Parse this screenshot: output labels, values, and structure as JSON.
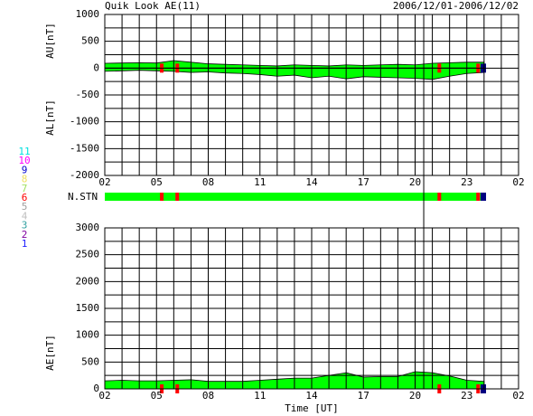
{
  "chart_data": [
    {
      "type": "area",
      "title": "Quik Look AE(11)",
      "subtitle": "2006/12/01-2006/12/02",
      "ylabels": [
        "AU[nT]",
        "AL[nT]"
      ],
      "x": [
        0,
        1,
        2,
        3,
        4,
        5,
        6,
        7,
        8,
        9,
        10,
        11,
        12,
        13,
        14,
        15,
        16,
        17,
        18,
        19,
        20,
        21,
        22
      ],
      "series": [
        {
          "color": "#00ff00",
          "values": [
            90,
            95,
            100,
            95,
            140,
            110,
            80,
            70,
            60,
            50,
            40,
            60,
            50,
            40,
            60,
            50,
            60,
            70,
            60,
            90,
            100,
            110,
            110
          ]
        },
        {
          "color": "#00ff00",
          "values": [
            -60,
            -50,
            -40,
            -50,
            -60,
            -80,
            -70,
            -90,
            -100,
            -120,
            -150,
            -130,
            -180,
            -150,
            -200,
            -160,
            -170,
            -180,
            -190,
            -210,
            -150,
            -100,
            -80
          ]
        }
      ],
      "xlim": [
        0,
        24
      ],
      "xticks": [
        {
          "value": 0,
          "label": "02"
        },
        {
          "value": 3,
          "label": "05"
        },
        {
          "value": 6,
          "label": "08"
        },
        {
          "value": 9,
          "label": "11"
        },
        {
          "value": 12,
          "label": "14"
        },
        {
          "value": 15,
          "label": "17"
        },
        {
          "value": 18,
          "label": "20"
        },
        {
          "value": 21,
          "label": "23"
        },
        {
          "value": 24,
          "label": "02"
        }
      ],
      "xgrid": [
        0,
        1,
        2,
        3,
        4,
        5,
        6,
        7,
        8,
        9,
        10,
        11,
        12,
        13,
        14,
        15,
        16,
        17,
        18,
        19,
        20,
        21,
        22,
        23,
        24
      ],
      "ylim": [
        -2000,
        1000
      ],
      "yticks": [
        -2000,
        -1500,
        -1000,
        -500,
        0,
        500,
        1000
      ],
      "ygrid": [
        -2000,
        -1750,
        -1500,
        -1250,
        -1000,
        -750,
        -500,
        -250,
        0,
        250,
        500,
        750,
        1000
      ],
      "cursor": 18.5
    },
    {
      "type": "area",
      "ylabels": [
        "AE[nT]"
      ],
      "xlabel": "Time [UT]",
      "x": [
        0,
        1,
        2,
        3,
        4,
        5,
        6,
        7,
        8,
        9,
        10,
        11,
        12,
        13,
        14,
        15,
        16,
        17,
        18,
        19,
        20,
        21,
        22
      ],
      "series": [
        {
          "color": "#00ff00",
          "values": [
            150,
            160,
            150,
            150,
            160,
            170,
            140,
            140,
            140,
            160,
            180,
            200,
            200,
            250,
            300,
            220,
            230,
            230,
            320,
            300,
            240,
            160,
            140
          ]
        }
      ],
      "xlim": [
        0,
        24
      ],
      "xticks": [
        {
          "value": 0,
          "label": "02"
        },
        {
          "value": 3,
          "label": "05"
        },
        {
          "value": 6,
          "label": "08"
        },
        {
          "value": 9,
          "label": "11"
        },
        {
          "value": 12,
          "label": "14"
        },
        {
          "value": 15,
          "label": "17"
        },
        {
          "value": 18,
          "label": "20"
        },
        {
          "value": 21,
          "label": "23"
        },
        {
          "value": 24,
          "label": "02"
        }
      ],
      "xgrid": [
        0,
        1,
        2,
        3,
        4,
        5,
        6,
        7,
        8,
        9,
        10,
        11,
        12,
        13,
        14,
        15,
        16,
        17,
        18,
        19,
        20,
        21,
        22,
        23,
        24
      ],
      "ylim": [
        0,
        3000
      ],
      "yticks": [
        0,
        500,
        1000,
        1500,
        2000,
        2500,
        3000
      ],
      "ygrid": [
        0,
        250,
        500,
        750,
        1000,
        1250,
        1500,
        1750,
        2000,
        2250,
        2500,
        2750,
        3000
      ]
    }
  ],
  "station_bar": {
    "label": "N.STN",
    "color": "#00ff00",
    "markers": [
      {
        "x": 3.2,
        "color": "#ff0000"
      },
      {
        "x": 4.1,
        "color": "#ff0000"
      },
      {
        "x": 19.3,
        "color": "#ff0000"
      },
      {
        "x": 21.55,
        "color": "#ff0000"
      },
      {
        "x": 21.8,
        "color": "#000080"
      }
    ]
  },
  "station_legend": [
    {
      "label": "11",
      "color": "#00e0e0"
    },
    {
      "label": "10",
      "color": "#ff00ff"
    },
    {
      "label": "9",
      "color": "#0000cc"
    },
    {
      "label": "8",
      "color": "#f0e060"
    },
    {
      "label": "7",
      "color": "#a0e060"
    },
    {
      "label": "6",
      "color": "#ff0000"
    },
    {
      "label": "5",
      "color": "#a0a0a0"
    },
    {
      "label": "4",
      "color": "#c0c0c0"
    },
    {
      "label": "3",
      "color": "#30a0a0"
    },
    {
      "label": "2",
      "color": "#8000a0"
    },
    {
      "label": "1",
      "color": "#2020ff"
    }
  ]
}
